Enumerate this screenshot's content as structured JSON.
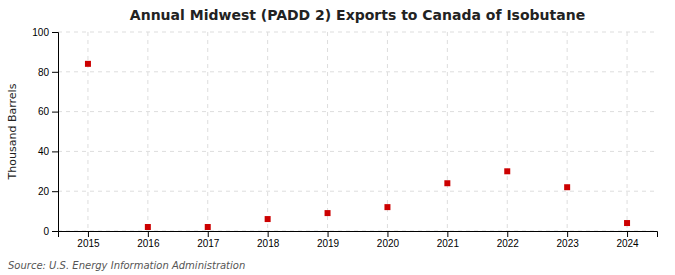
{
  "chart_data": {
    "type": "scatter",
    "title": "Annual Midwest (PADD 2) Exports to Canada of Isobutane",
    "ylabel": "Thousand Barrels",
    "source": "Source: U.S. Energy Information Administration",
    "x": [
      2015,
      2016,
      2017,
      2018,
      2019,
      2020,
      2021,
      2022,
      2023,
      2024
    ],
    "values": [
      84,
      2,
      2,
      6,
      9,
      12,
      24,
      30,
      22,
      4
    ],
    "color": "#cc0000",
    "marker": "square",
    "xlim": [
      2014.5,
      2024.5
    ],
    "xticks": [
      2015,
      2016,
      2017,
      2018,
      2019,
      2020,
      2021,
      2022,
      2023,
      2024
    ],
    "ylim": [
      0,
      100
    ],
    "yticks": [
      0,
      20,
      40,
      60,
      80,
      100
    ],
    "grid": true
  }
}
